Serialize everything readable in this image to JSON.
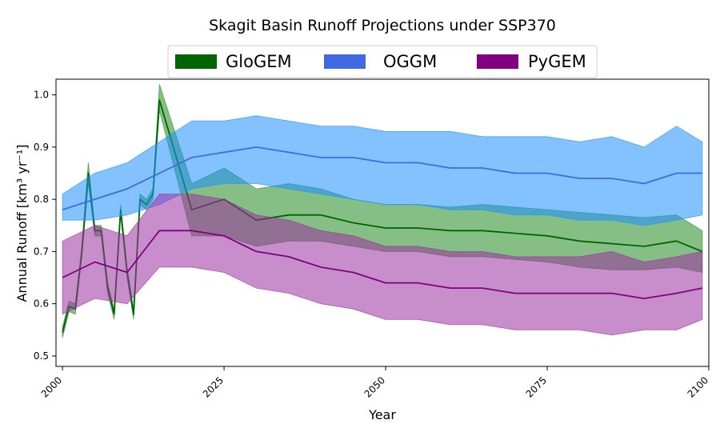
{
  "chart_data": {
    "type": "line",
    "title": "Skagit Basin Runoff Projections under SSP370",
    "xlabel": "Year",
    "ylabel": "Annual Runoff [km³ yr⁻¹]",
    "xlim": [
      1999,
      2100
    ],
    "ylim": [
      0.48,
      1.03
    ],
    "x_ticks": [
      2000,
      2025,
      2050,
      2075,
      2100
    ],
    "y_ticks": [
      0.5,
      0.6,
      0.7,
      0.8,
      0.9,
      1.0
    ],
    "y_tick_labels": [
      "0.5",
      "0.6",
      "0.7",
      "0.8",
      "0.9",
      "1.0"
    ],
    "grid": false,
    "legend_position": "top-center",
    "series": [
      {
        "name": "GloGEM",
        "color": "#006400",
        "fill_color": "#228B22",
        "x": [
          2000,
          2001,
          2002,
          2003,
          2004,
          2005,
          2006,
          2007,
          2008,
          2009,
          2010,
          2011,
          2012,
          2013,
          2014,
          2015,
          2020,
          2025,
          2030,
          2035,
          2040,
          2045,
          2050,
          2055,
          2060,
          2065,
          2070,
          2075,
          2080,
          2085,
          2090,
          2095,
          2099
        ],
        "mean": [
          0.545,
          0.595,
          0.59,
          0.7,
          0.85,
          0.74,
          0.74,
          0.63,
          0.58,
          0.78,
          0.66,
          0.58,
          0.8,
          0.79,
          0.81,
          0.99,
          0.78,
          0.8,
          0.76,
          0.77,
          0.77,
          0.755,
          0.745,
          0.745,
          0.74,
          0.74,
          0.735,
          0.73,
          0.72,
          0.715,
          0.71,
          0.72,
          0.7
        ],
        "lower": [
          0.535,
          0.585,
          0.58,
          0.69,
          0.83,
          0.73,
          0.73,
          0.62,
          0.57,
          0.77,
          0.65,
          0.57,
          0.79,
          0.78,
          0.8,
          0.97,
          0.73,
          0.73,
          0.71,
          0.72,
          0.72,
          0.71,
          0.7,
          0.7,
          0.69,
          0.69,
          0.685,
          0.68,
          0.67,
          0.665,
          0.665,
          0.67,
          0.66
        ],
        "upper": [
          0.555,
          0.605,
          0.6,
          0.71,
          0.87,
          0.75,
          0.75,
          0.64,
          0.59,
          0.79,
          0.67,
          0.59,
          0.81,
          0.8,
          0.82,
          1.02,
          0.83,
          0.86,
          0.82,
          0.83,
          0.82,
          0.8,
          0.79,
          0.79,
          0.785,
          0.79,
          0.785,
          0.78,
          0.775,
          0.77,
          0.765,
          0.77,
          0.74
        ]
      },
      {
        "name": "OGGM",
        "color": "#4169E1",
        "fill_color": "#1E90FF",
        "x": [
          2000,
          2005,
          2010,
          2015,
          2020,
          2025,
          2030,
          2035,
          2040,
          2045,
          2050,
          2055,
          2060,
          2065,
          2070,
          2075,
          2080,
          2085,
          2090,
          2095,
          2099
        ],
        "mean": [
          0.78,
          0.8,
          0.82,
          0.85,
          0.88,
          0.89,
          0.9,
          0.89,
          0.88,
          0.88,
          0.87,
          0.87,
          0.86,
          0.86,
          0.85,
          0.85,
          0.84,
          0.84,
          0.83,
          0.85,
          0.85
        ],
        "lower": [
          0.76,
          0.76,
          0.77,
          0.79,
          0.82,
          0.83,
          0.83,
          0.82,
          0.81,
          0.8,
          0.79,
          0.79,
          0.78,
          0.78,
          0.77,
          0.77,
          0.76,
          0.76,
          0.75,
          0.76,
          0.77
        ],
        "upper": [
          0.81,
          0.85,
          0.87,
          0.91,
          0.95,
          0.95,
          0.96,
          0.95,
          0.94,
          0.94,
          0.93,
          0.93,
          0.93,
          0.92,
          0.92,
          0.92,
          0.91,
          0.92,
          0.9,
          0.94,
          0.91
        ]
      },
      {
        "name": "PyGEM",
        "color": "#800080",
        "fill_color": "#9B30A0",
        "x": [
          2000,
          2005,
          2010,
          2015,
          2020,
          2025,
          2030,
          2035,
          2040,
          2045,
          2050,
          2055,
          2060,
          2065,
          2070,
          2075,
          2080,
          2085,
          2090,
          2095,
          2099
        ],
        "mean": [
          0.65,
          0.68,
          0.66,
          0.74,
          0.74,
          0.73,
          0.7,
          0.69,
          0.67,
          0.66,
          0.64,
          0.64,
          0.63,
          0.63,
          0.62,
          0.62,
          0.62,
          0.62,
          0.61,
          0.62,
          0.63
        ],
        "lower": [
          0.58,
          0.61,
          0.6,
          0.67,
          0.67,
          0.66,
          0.63,
          0.62,
          0.6,
          0.59,
          0.57,
          0.57,
          0.56,
          0.56,
          0.55,
          0.55,
          0.55,
          0.54,
          0.55,
          0.55,
          0.57
        ],
        "upper": [
          0.72,
          0.75,
          0.73,
          0.81,
          0.81,
          0.8,
          0.77,
          0.76,
          0.74,
          0.73,
          0.71,
          0.71,
          0.7,
          0.7,
          0.69,
          0.69,
          0.69,
          0.7,
          0.68,
          0.69,
          0.7
        ]
      }
    ]
  }
}
